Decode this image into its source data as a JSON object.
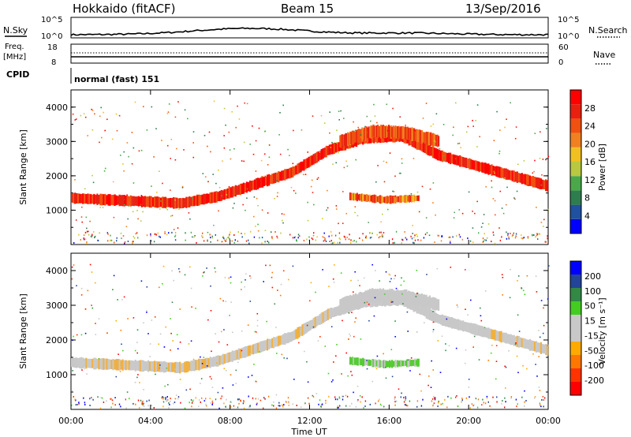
{
  "header": {
    "station": "Hokkaido (fitACF)",
    "beam": "Beam 15",
    "date": "13/Sep/2016"
  },
  "top_panels": {
    "nsky_label": "N.Sky",
    "nsky_ticks": [
      "10^5",
      "10^0"
    ],
    "nsky_right_ticks": [
      "10^5",
      "10^0"
    ],
    "nsearch_label": "N.Search",
    "freq_label_1": "Freq.",
    "freq_label_2": "[MHz]",
    "freq_ticks": [
      "18",
      "8"
    ],
    "nave_label": "Nave",
    "nave_ticks": [
      "60",
      "0"
    ],
    "cpid_label": "CPID",
    "cpid_text": "normal (fast) 151"
  },
  "colors": {
    "power_scale": [
      "#0000ff",
      "#2050a0",
      "#2e7d4f",
      "#4aa84a",
      "#b8c840",
      "#f0c020",
      "#f08020",
      "#f05010",
      "#e82010",
      "#ff0000"
    ],
    "velocity_scale": [
      "#ff0000",
      "#ff3300",
      "#ff7700",
      "#ffaa00",
      "#c8c8c8",
      "#c8c8c8",
      "#44cc22",
      "#338844",
      "#224499",
      "#0000ff"
    ]
  },
  "chart_data": [
    {
      "type": "heatmap",
      "title": "",
      "xlabel": "",
      "ylabel": "Slant Range [km]",
      "x_tick_labels": [
        "00:00",
        "04:00",
        "08:00",
        "12:00",
        "16:00",
        "20:00",
        "00:00"
      ],
      "xlim_hours": [
        0,
        24
      ],
      "ylim": [
        0,
        4500
      ],
      "y_tick_labels": [
        "1000",
        "2000",
        "3000",
        "4000"
      ],
      "colorbar": {
        "label": "Power [dB]",
        "ticks": [
          "4",
          "8",
          "12",
          "16",
          "20",
          "24",
          "28"
        ]
      },
      "echo_bands": [
        {
          "region": "main band",
          "start_h": 0,
          "end_h": 24,
          "center_km": [
            1350,
            1300,
            1250,
            1200,
            1400,
            1750,
            2100,
            2750,
            3100,
            3150,
            2600,
            2300,
            2000,
            1700
          ],
          "value_db": 26
        },
        {
          "region": "upper arc",
          "start_h": 13.5,
          "end_h": 18.5,
          "center_km": [
            3000,
            3300,
            3250,
            3000
          ],
          "value_db": 22
        },
        {
          "region": "lower patch",
          "start_h": 14,
          "end_h": 17.5,
          "center_km": [
            1400,
            1300,
            1350
          ],
          "value_db": 20
        }
      ]
    },
    {
      "type": "heatmap",
      "title": "",
      "xlabel": "Time UT",
      "ylabel": "Slant Range [km]",
      "x_tick_labels": [
        "00:00",
        "04:00",
        "08:00",
        "12:00",
        "16:00",
        "20:00",
        "00:00"
      ],
      "xlim_hours": [
        0,
        24
      ],
      "ylim": [
        0,
        4500
      ],
      "y_tick_labels": [
        "1000",
        "2000",
        "3000",
        "4000"
      ],
      "colorbar": {
        "label": "Velocity [m s⁻¹]",
        "ticks": [
          "200",
          "100",
          "50",
          "15",
          "-15",
          "-50",
          "-100",
          "-200"
        ]
      }
    }
  ]
}
